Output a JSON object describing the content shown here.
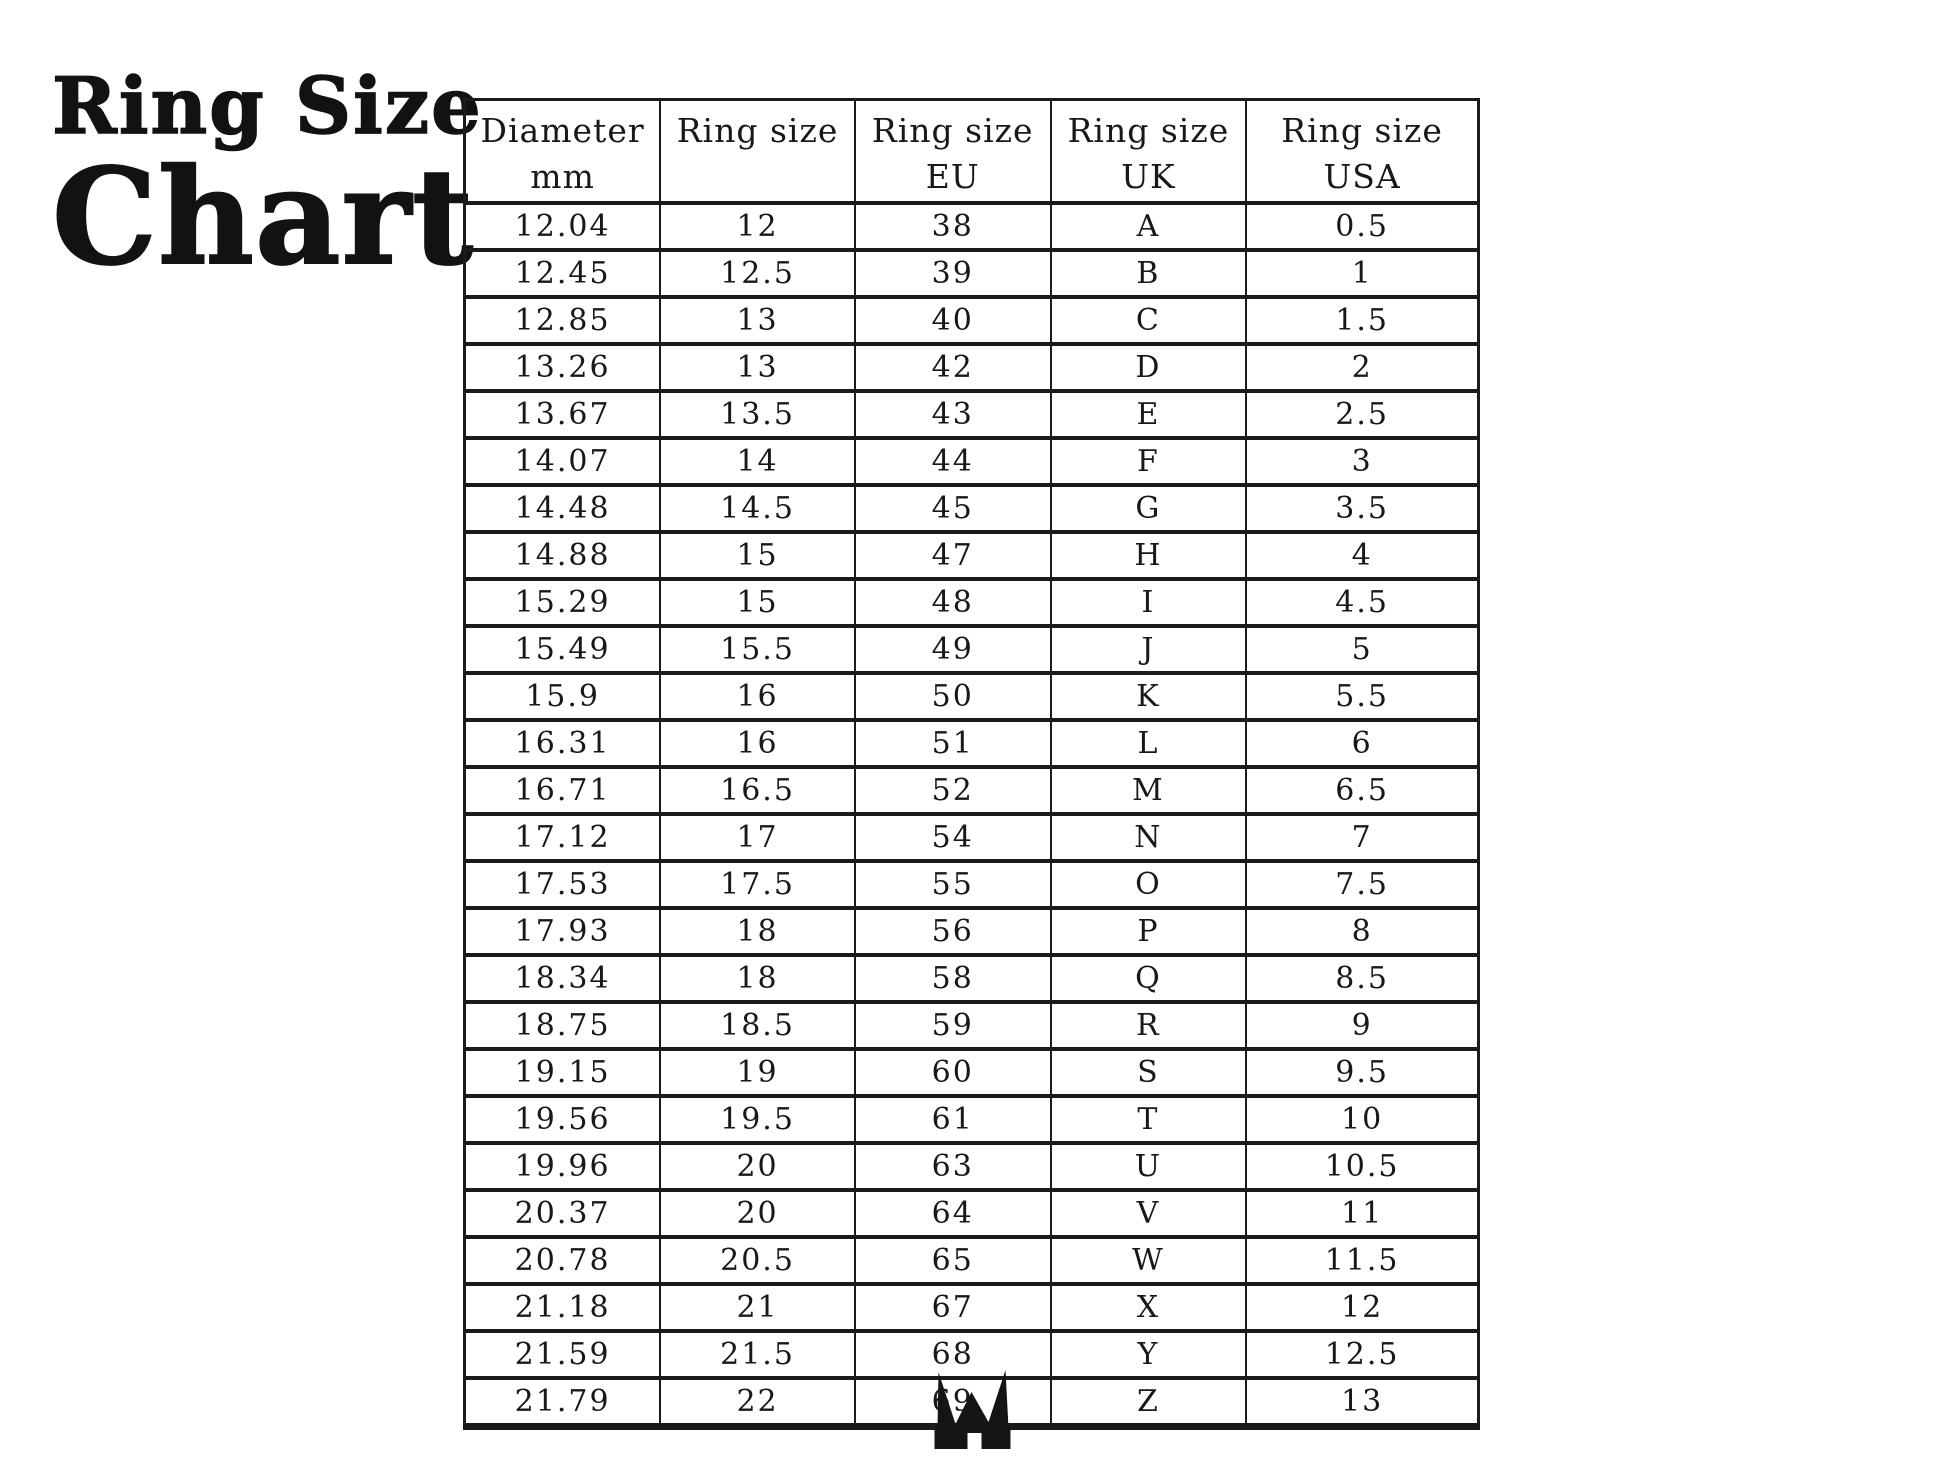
{
  "title": {
    "line1": "Ring Size",
    "line2": "Chart"
  },
  "colors": {
    "ink": "#181818",
    "border": "#1b1b1b",
    "background": "#ffffff"
  },
  "logo": {
    "name": "crown-w-monogram"
  },
  "chart_data": {
    "type": "table",
    "title": "Ring Size Chart",
    "columns": [
      {
        "line1": "Diameter",
        "line2": "mm"
      },
      {
        "line1": "Ring size",
        "line2": ""
      },
      {
        "line1": "Ring size",
        "line2": "EU"
      },
      {
        "line1": "Ring size",
        "line2": "UK"
      },
      {
        "line1": "Ring size",
        "line2": "USA"
      }
    ],
    "rows": [
      [
        "12.04",
        "12",
        "38",
        "A",
        "0.5"
      ],
      [
        "12.45",
        "12.5",
        "39",
        "B",
        "1"
      ],
      [
        "12.85",
        "13",
        "40",
        "C",
        "1.5"
      ],
      [
        "13.26",
        "13",
        "42",
        "D",
        "2"
      ],
      [
        "13.67",
        "13.5",
        "43",
        "E",
        "2.5"
      ],
      [
        "14.07",
        "14",
        "44",
        "F",
        "3"
      ],
      [
        "14.48",
        "14.5",
        "45",
        "G",
        "3.5"
      ],
      [
        "14.88",
        "15",
        "47",
        "H",
        "4"
      ],
      [
        "15.29",
        "15",
        "48",
        "I",
        "4.5"
      ],
      [
        "15.49",
        "15.5",
        "49",
        "J",
        "5"
      ],
      [
        "15.9",
        "16",
        "50",
        "K",
        "5.5"
      ],
      [
        "16.31",
        "16",
        "51",
        "L",
        "6"
      ],
      [
        "16.71",
        "16.5",
        "52",
        "M",
        "6.5"
      ],
      [
        "17.12",
        "17",
        "54",
        "N",
        "7"
      ],
      [
        "17.53",
        "17.5",
        "55",
        "O",
        "7.5"
      ],
      [
        "17.93",
        "18",
        "56",
        "P",
        "8"
      ],
      [
        "18.34",
        "18",
        "58",
        "Q",
        "8.5"
      ],
      [
        "18.75",
        "18.5",
        "59",
        "R",
        "9"
      ],
      [
        "19.15",
        "19",
        "60",
        "S",
        "9.5"
      ],
      [
        "19.56",
        "19.5",
        "61",
        "T",
        "10"
      ],
      [
        "19.96",
        "20",
        "63",
        "U",
        "10.5"
      ],
      [
        "20.37",
        "20",
        "64",
        "V",
        "11"
      ],
      [
        "20.78",
        "20.5",
        "65",
        "W",
        "11.5"
      ],
      [
        "21.18",
        "21",
        "67",
        "X",
        "12"
      ],
      [
        "21.59",
        "21.5",
        "68",
        "Y",
        "12.5"
      ],
      [
        "21.79",
        "22",
        "69",
        "Z",
        "13"
      ]
    ]
  }
}
